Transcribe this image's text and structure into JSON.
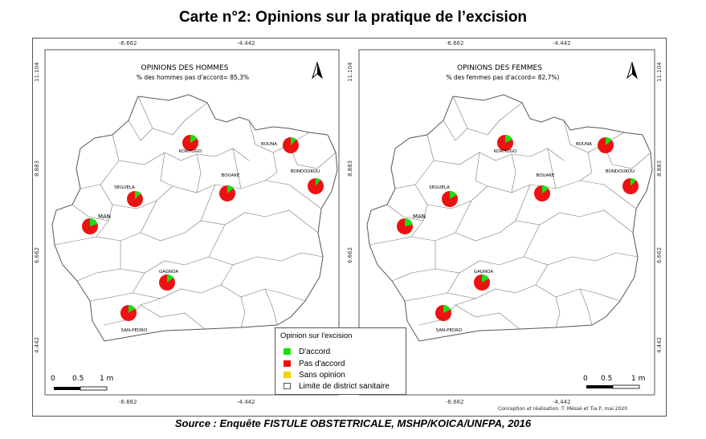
{
  "title": "Carte n°2: Opinions sur la pratique de l’excision",
  "source": "Source : Enquête FISTULE OBSTETRICALE, MSHP/KOICA/UNFPA, 2016",
  "credit": "Conception et réalisation :T. Méssé et Tia P, mai 2020",
  "colors": {
    "accord": "#17e012",
    "pas_accord": "#ee1111",
    "sans_opinion": "#f2d200",
    "border": "#555555"
  },
  "coords": {
    "lon": [
      "-6.662",
      "-4.442"
    ],
    "lat": [
      "11.104",
      "8.883",
      "6.662",
      "4.442"
    ]
  },
  "maps": [
    {
      "title": "OPINIONS DES HOMMES",
      "subtitle": "% des hommes pas d'accord= 85,3%",
      "scale": {
        "zero": "0",
        "mid": "0.5",
        "end": "1 m"
      },
      "cities": [
        {
          "name": "KORHOGO",
          "accord_pct": 16
        },
        {
          "name": "BOUNA",
          "accord_pct": 12
        },
        {
          "name": "SEGUELA",
          "accord_pct": 13
        },
        {
          "name": "BOUAKE",
          "accord_pct": 14
        },
        {
          "name": "BONDOUKOU",
          "accord_pct": 10
        },
        {
          "name": "MAN",
          "accord_pct": 20
        },
        {
          "name": "GAGNOA",
          "accord_pct": 15
        },
        {
          "name": "SAN-PEDRO",
          "accord_pct": 16
        }
      ]
    },
    {
      "title": "OPINIONS DES FEMMES",
      "subtitle": "% des femmes pas d'accord= 82,7%)",
      "scale": {
        "zero": "0",
        "mid": "0.5",
        "end": "1 m"
      },
      "cities": [
        {
          "name": "KORHOGO",
          "accord_pct": 18
        },
        {
          "name": "BOUNA",
          "accord_pct": 14
        },
        {
          "name": "SEGUELA",
          "accord_pct": 16
        },
        {
          "name": "BOUAKE",
          "accord_pct": 15
        },
        {
          "name": "BONDOUKOU",
          "accord_pct": 12
        },
        {
          "name": "MAN",
          "accord_pct": 22
        },
        {
          "name": "GAGNOA",
          "accord_pct": 17
        },
        {
          "name": "SAN-PEDRO",
          "accord_pct": 18
        }
      ]
    }
  ],
  "legend": {
    "title": "Opinion sur l'excision",
    "items": [
      "D'accord",
      "Pas d'accord",
      "Sans opinion",
      "Limite de district sanitaire"
    ]
  }
}
